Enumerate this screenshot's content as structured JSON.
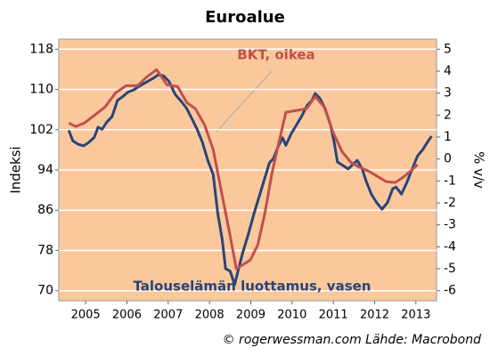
{
  "chart_data": {
    "type": "line",
    "title": "Euroalue",
    "y_label": "Indeksi",
    "y2_label": "% v/v",
    "source": "© rogerwessman.com Lähde: Macrobond",
    "xlim": [
      2004.85,
      2014.0
    ],
    "xticks": [
      {
        "value": 2005.5,
        "label": "2005"
      },
      {
        "value": 2006.5,
        "label": "2006"
      },
      {
        "value": 2007.5,
        "label": "2007"
      },
      {
        "value": 2008.5,
        "label": "2008"
      },
      {
        "value": 2009.5,
        "label": "2009"
      },
      {
        "value": 2010.5,
        "label": "2010"
      },
      {
        "value": 2011.5,
        "label": "2011"
      },
      {
        "value": 2012.5,
        "label": "2012"
      },
      {
        "value": 2013.5,
        "label": "2013"
      }
    ],
    "ylim": [
      68,
      120
    ],
    "yticks": [
      70,
      78,
      86,
      94,
      102,
      110,
      118
    ],
    "y2lim": [
      -6.46,
      5.46
    ],
    "y2ticks": [
      -6,
      -5,
      -4,
      -3,
      -2,
      -1,
      0,
      1,
      2,
      3,
      4,
      5
    ],
    "grid": true,
    "series": [
      {
        "name": "Talouselämän luottamus, vasen",
        "color": "#27457a",
        "axis": "y",
        "x": [
          2005.09,
          2005.19,
          2005.32,
          2005.45,
          2005.58,
          2005.71,
          2005.8,
          2005.9,
          2006.01,
          2006.14,
          2006.27,
          2006.4,
          2006.53,
          2006.66,
          2006.83,
          2006.98,
          2007.13,
          2007.26,
          2007.39,
          2007.52,
          2007.67,
          2007.82,
          2007.95,
          2008.08,
          2008.2,
          2008.33,
          2008.46,
          2008.59,
          2008.7,
          2008.81,
          2008.89,
          2009.0,
          2009.11,
          2009.19,
          2009.3,
          2009.45,
          2009.58,
          2009.71,
          2009.84,
          2009.95,
          2010.05,
          2010.16,
          2010.27,
          2010.35,
          2010.48,
          2010.61,
          2010.74,
          2010.87,
          2010.98,
          2011.06,
          2011.17,
          2011.3,
          2011.43,
          2011.52,
          2011.6,
          2011.73,
          2011.86,
          2011.97,
          2012.08,
          2012.2,
          2012.29,
          2012.42,
          2012.55,
          2012.68,
          2012.81,
          2012.94,
          2013.02,
          2013.15,
          2013.28,
          2013.41,
          2013.54,
          2013.67,
          2013.8,
          2013.88
        ],
        "values": [
          101.9,
          99.8,
          99.1,
          98.8,
          99.5,
          100.5,
          102.5,
          102.1,
          103.5,
          104.6,
          107.8,
          108.6,
          109.5,
          109.9,
          110.8,
          111.5,
          112.2,
          112.9,
          112.7,
          111.6,
          109.0,
          107.6,
          106.2,
          104.1,
          102.1,
          99.5,
          95.9,
          93.1,
          85.4,
          80.1,
          74.4,
          73.9,
          71.2,
          73.9,
          77.4,
          81.5,
          85.4,
          88.9,
          92.4,
          95.4,
          96.3,
          98.6,
          100.4,
          98.9,
          101.2,
          103.0,
          104.8,
          106.9,
          107.8,
          109.2,
          108.3,
          106.2,
          103.0,
          99.5,
          95.6,
          94.9,
          94.2,
          95.1,
          95.9,
          94.2,
          91.9,
          89.2,
          87.5,
          86.2,
          87.5,
          90.3,
          90.6,
          89.2,
          91.5,
          94.2,
          96.8,
          98.1,
          99.8,
          100.7
        ]
      },
      {
        "name": "BKT, oikea",
        "color": "#c0504d",
        "axis": "y2",
        "x": [
          2005.09,
          2005.26,
          2005.47,
          2005.69,
          2005.97,
          2006.23,
          2006.48,
          2006.76,
          2006.98,
          2007.22,
          2007.47,
          2007.73,
          2007.95,
          2008.16,
          2008.38,
          2008.59,
          2008.81,
          2008.98,
          2009.15,
          2009.32,
          2009.49,
          2009.67,
          2009.84,
          2010.01,
          2010.18,
          2010.35,
          2010.61,
          2010.85,
          2011.06,
          2011.28,
          2011.49,
          2011.71,
          2011.92,
          2012.14,
          2012.35,
          2012.57,
          2012.78,
          2013.0,
          2013.22,
          2013.37,
          2013.54
        ],
        "values": [
          1.64,
          1.48,
          1.64,
          1.96,
          2.37,
          3.02,
          3.34,
          3.34,
          3.74,
          4.07,
          3.38,
          3.3,
          2.57,
          2.29,
          1.56,
          0.43,
          -1.68,
          -3.3,
          -5.0,
          -4.8,
          -4.6,
          -3.91,
          -2.49,
          -0.67,
          0.75,
          2.13,
          2.21,
          2.29,
          2.85,
          2.37,
          1.23,
          0.34,
          -0.14,
          -0.38,
          -0.55,
          -0.79,
          -1.03,
          -1.07,
          -0.79,
          -0.55,
          -0.26
        ]
      }
    ]
  }
}
